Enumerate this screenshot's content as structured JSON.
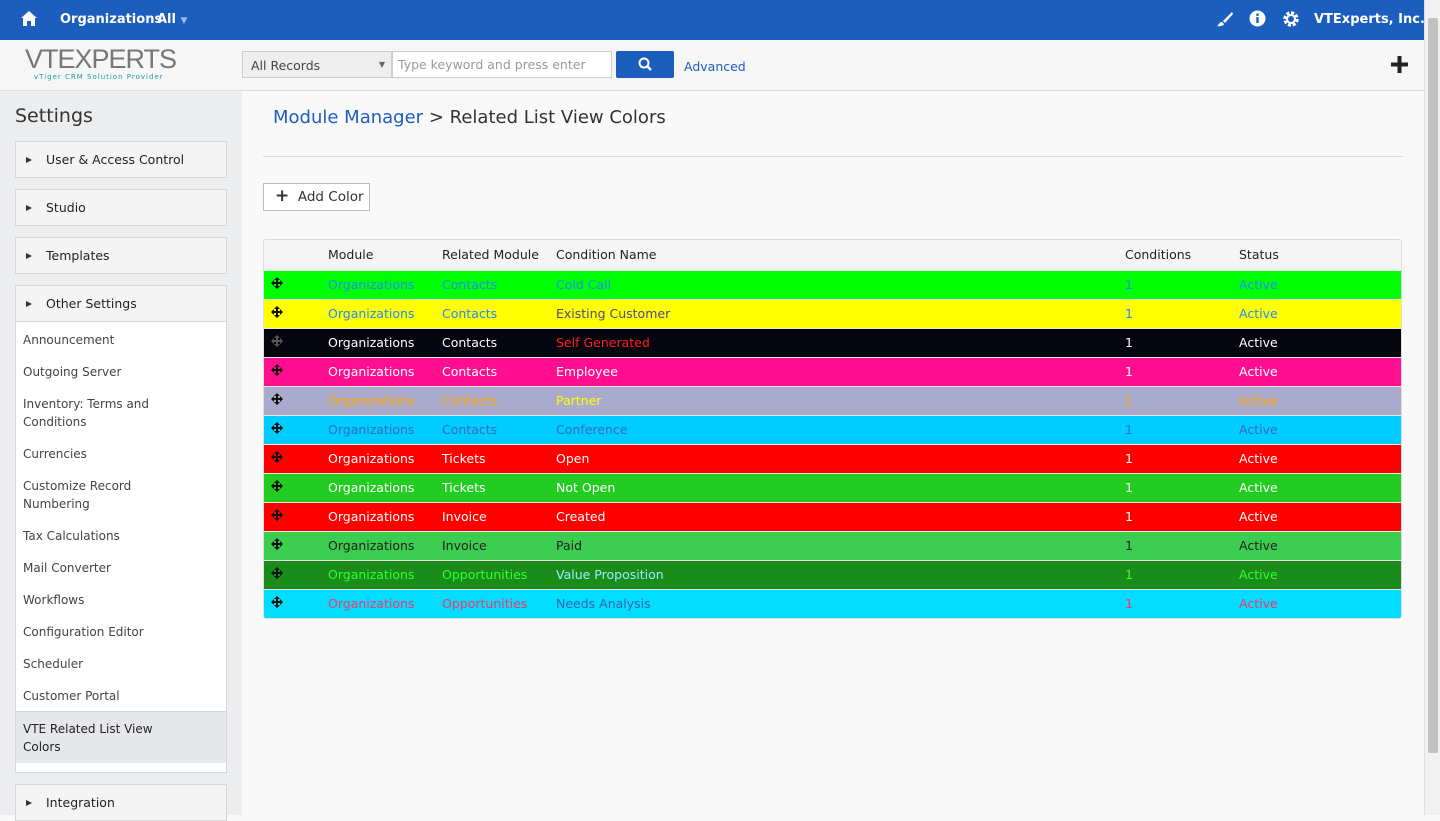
{
  "topbar": {
    "module": "Organizations",
    "filter": "All",
    "company": "VTExperts, Inc."
  },
  "header": {
    "logo": "VTEXPERTS",
    "tagline": "vTiger CRM Solution Provider",
    "record_filter": "All Records",
    "search_placeholder": "Type keyword and press enter",
    "advanced": "Advanced"
  },
  "sidebar": {
    "title": "Settings",
    "sections": [
      {
        "label": "User & Access Control"
      },
      {
        "label": "Studio"
      },
      {
        "label": "Templates"
      },
      {
        "label": "Other Settings",
        "items": [
          "Announcement",
          "Outgoing Server",
          "Inventory: Terms and Conditions",
          "Currencies",
          "Customize Record Numbering",
          "Tax Calculations",
          "Mail Converter",
          "Workflows",
          "Configuration Editor",
          "Scheduler",
          "Customer Portal",
          "VTE Related List View Colors"
        ],
        "active_item": 11
      },
      {
        "label": "Integration"
      }
    ]
  },
  "main": {
    "breadcrumb": {
      "parent": "Module Manager",
      "separator": ">",
      "current": "Related List View Colors"
    },
    "add_button": "Add Color",
    "table": {
      "columns": [
        "Module",
        "Related Module",
        "Condition Name",
        "Conditions",
        "Status"
      ],
      "rows": [
        {
          "cells": [
            "Organizations",
            "Contacts",
            "Cold Call",
            1,
            "Active"
          ],
          "background": "#00ff00",
          "colors": [
            "#1e8cff",
            "#1e8cff",
            "#1e8cff",
            "#1e8cff",
            "#1e8cff"
          ]
        },
        {
          "cells": [
            "Organizations",
            "Contacts",
            "Existing Customer",
            1,
            "Active"
          ],
          "background": "#ffff00",
          "colors": [
            "#1e8cff",
            "#1e8cff",
            "#4a4a8a",
            "#1e8cff",
            "#1e8cff"
          ]
        },
        {
          "cells": [
            "Organizations",
            "Contacts",
            "Self Generated",
            1,
            "Active"
          ],
          "background": "#05050f",
          "colors": [
            "#ffffff",
            "#ffffff",
            "#ff2020",
            "#ffffff",
            "#ffffff"
          ]
        },
        {
          "cells": [
            "Organizations",
            "Contacts",
            "Employee",
            1,
            "Active"
          ],
          "background": "#ff0f8f",
          "colors": [
            "#ffffff",
            "#ffffff",
            "#ffffff",
            "#ffffff",
            "#ffffff"
          ]
        },
        {
          "cells": [
            "Organizations",
            "Contacts",
            "Partner",
            1,
            "Active"
          ],
          "background": "#aaaacc",
          "colors": [
            "#ffa500",
            "#ffa500",
            "#ffff00",
            "#ffa500",
            "#ffa500"
          ]
        },
        {
          "cells": [
            "Organizations",
            "Contacts",
            "Conference",
            1,
            "Active"
          ],
          "background": "#00ccff",
          "colors": [
            "#3a6abf",
            "#3a6abf",
            "#3a6abf",
            "#3a6abf",
            "#3a6abf"
          ]
        },
        {
          "cells": [
            "Organizations",
            "Tickets",
            "Open",
            1,
            "Active"
          ],
          "background": "#ff0000",
          "colors": [
            "#ffffff",
            "#ffffff",
            "#ffffff",
            "#ffffff",
            "#ffffff"
          ]
        },
        {
          "cells": [
            "Organizations",
            "Tickets",
            "Not Open",
            1,
            "Active"
          ],
          "background": "#22cc22",
          "colors": [
            "#ffffff",
            "#ffffff",
            "#ffffff",
            "#ffffff",
            "#ffffff"
          ]
        },
        {
          "cells": [
            "Organizations",
            "Invoice",
            "Created",
            1,
            "Active"
          ],
          "background": "#ff0000",
          "colors": [
            "#ffffff",
            "#ffffff",
            "#ffffff",
            "#ffffff",
            "#ffffff"
          ]
        },
        {
          "cells": [
            "Organizations",
            "Invoice",
            "Paid",
            1,
            "Active"
          ],
          "background": "#3ccc50",
          "colors": [
            "#222222",
            "#222222",
            "#222222",
            "#222222",
            "#222222"
          ]
        },
        {
          "cells": [
            "Organizations",
            "Opportunities",
            "Value Proposition",
            1,
            "Active"
          ],
          "background": "#1a8c1a",
          "colors": [
            "#33ff33",
            "#33ff33",
            "#99eeff",
            "#33ff33",
            "#33ff33"
          ]
        },
        {
          "cells": [
            "Organizations",
            "Opportunities",
            "Needs Analysis",
            1,
            "Active"
          ],
          "background": "#00ddff",
          "colors": [
            "#ff3366",
            "#ff3366",
            "#3366aa",
            "#ff3366",
            "#ff3366"
          ]
        }
      ]
    }
  }
}
